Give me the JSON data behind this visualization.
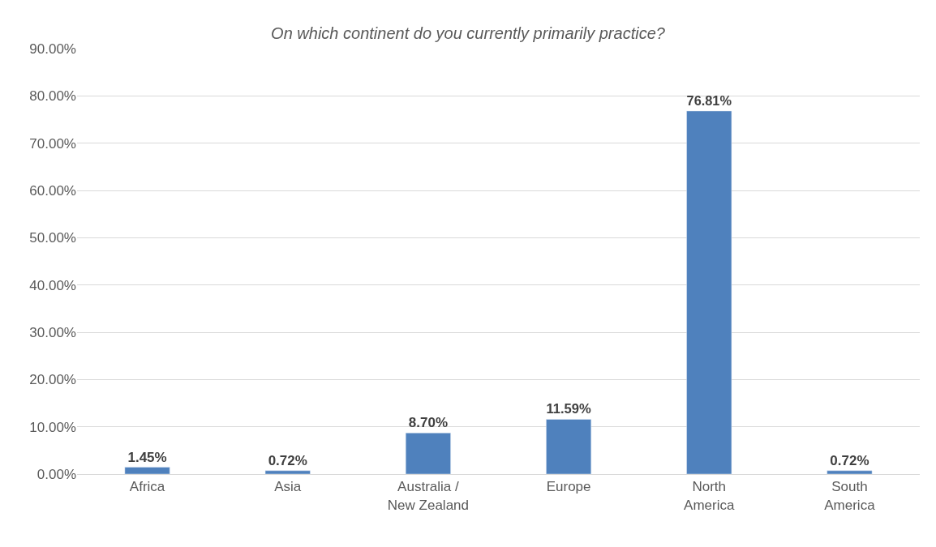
{
  "chart_data": {
    "type": "bar",
    "title": "On which continent do you currently primarily practice?",
    "categories": [
      "Africa",
      "Asia",
      "Australia / New Zealand",
      "Europe",
      "North America",
      "South America"
    ],
    "values": [
      1.45,
      0.72,
      8.7,
      11.59,
      76.81,
      0.72
    ],
    "value_labels": [
      "1.45%",
      "0.72%",
      "8.70%",
      "11.59%",
      "76.81%",
      "0.72%"
    ],
    "color": "#4f81bd",
    "ylim": [
      0,
      90
    ],
    "yticks": [
      {
        "value": 0,
        "label": "0.00%"
      },
      {
        "value": 10,
        "label": "10.00%"
      },
      {
        "value": 20,
        "label": "20.00%"
      },
      {
        "value": 30,
        "label": "30.00%"
      },
      {
        "value": 40,
        "label": "40.00%"
      },
      {
        "value": 50,
        "label": "50.00%"
      },
      {
        "value": 60,
        "label": "60.00%"
      },
      {
        "value": 70,
        "label": "70.00%"
      },
      {
        "value": 80,
        "label": "80.00%"
      },
      {
        "value": 90,
        "label": "90.00%"
      }
    ],
    "grid": "y",
    "legend": false
  }
}
